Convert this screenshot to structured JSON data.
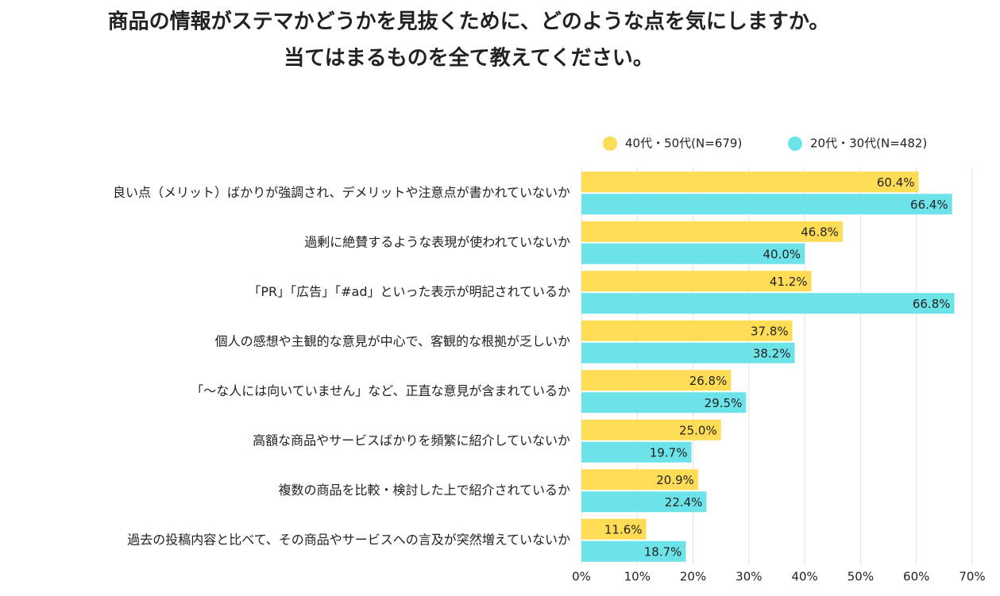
{
  "chart_data": {
    "type": "hbar",
    "title": [
      "商品の情報がステマかどうかを見抜くために、どのような点を気にしますか。",
      "当てはまるものを全て教えてください。"
    ],
    "categories": [
      "良い点（メリット）ばかりが強調され、デメリットや注意点が書かれていないか",
      "過剰に絶賛するような表現が使われていないか",
      "「PR」「広告」「#ad」といった表示が明記されているか",
      "個人の感想や主観的な意見が中心で、客観的な根拠が乏しいか",
      "「～な人には向いていません」など、正直な意見が含まれているか",
      "高額な商品やサービスばかりを頻繁に紹介していないか",
      "複数の商品を比較・検討した上で紹介されているか",
      "過去の投稿内容と比べて、その商品やサービスへの言及が突然増えていないか"
    ],
    "series": [
      {
        "name": "40代・50代(N=679)",
        "color": "#FFDC55",
        "values": [
          60.4,
          46.8,
          41.2,
          37.8,
          26.8,
          25.0,
          20.9,
          11.6
        ],
        "value_labels": [
          "60.4%",
          "46.8%",
          "41.2%",
          "37.8%",
          "26.8%",
          "25.0%",
          "20.9%",
          "11.6%"
        ]
      },
      {
        "name": "20代・30代(N=482)",
        "color": "#6CE3E8",
        "values": [
          66.4,
          40.0,
          66.8,
          38.2,
          29.5,
          19.7,
          22.4,
          18.7
        ],
        "value_labels": [
          "66.4%",
          "40.0%",
          "66.8%",
          "38.2%",
          "29.5%",
          "19.7%",
          "22.4%",
          "18.7%"
        ]
      }
    ],
    "xlim": [
      0,
      70
    ],
    "xticks": [
      {
        "value": 0,
        "label": "0%"
      },
      {
        "value": 10,
        "label": "10%"
      },
      {
        "value": 20,
        "label": "20%"
      },
      {
        "value": 30,
        "label": "30%"
      },
      {
        "value": 40,
        "label": "40%"
      },
      {
        "value": 50,
        "label": "50%"
      },
      {
        "value": 60,
        "label": "60%"
      },
      {
        "value": 70,
        "label": "70%"
      }
    ],
    "grid": true
  }
}
